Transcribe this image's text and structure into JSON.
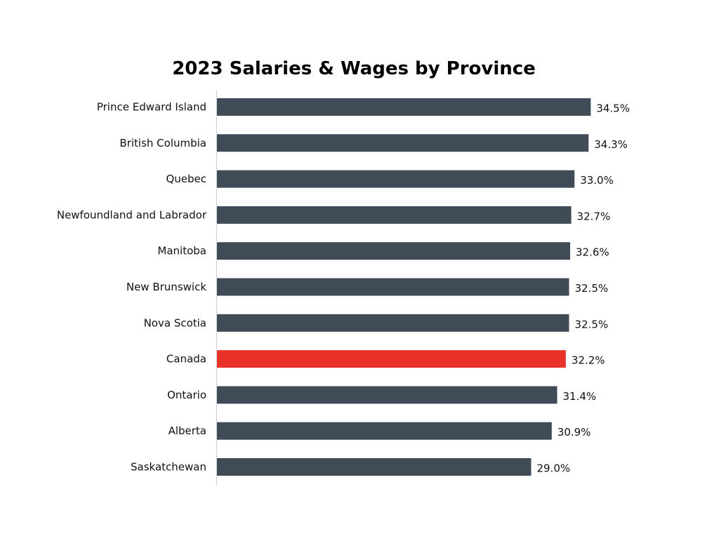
{
  "chart_data": {
    "type": "bar",
    "orientation": "horizontal",
    "title": "2023 Salaries & Wages by Province",
    "xlabel": "",
    "ylabel": "",
    "categories": [
      "Prince Edward Island",
      "British Columbia",
      "Quebec",
      "Newfoundland and Labrador",
      "Manitoba",
      "New Brunswick",
      "Nova Scotia",
      "Canada",
      "Ontario",
      "Alberta",
      "Saskatchewan"
    ],
    "values": [
      34.5,
      34.3,
      33.0,
      32.7,
      32.6,
      32.5,
      32.5,
      32.2,
      31.4,
      30.9,
      29.0
    ],
    "value_labels": [
      "34.5%",
      "34.3%",
      "33.0%",
      "32.7%",
      "32.6%",
      "32.5%",
      "32.5%",
      "32.2%",
      "31.4%",
      "30.9%",
      "29.0%"
    ],
    "highlight_category": "Canada",
    "xlim": [
      0,
      35
    ],
    "grid": false,
    "legend": "none",
    "colors": {
      "bar": "#3f4b57",
      "highlight": "#e8322a",
      "axis": "#d0d0d0"
    }
  }
}
